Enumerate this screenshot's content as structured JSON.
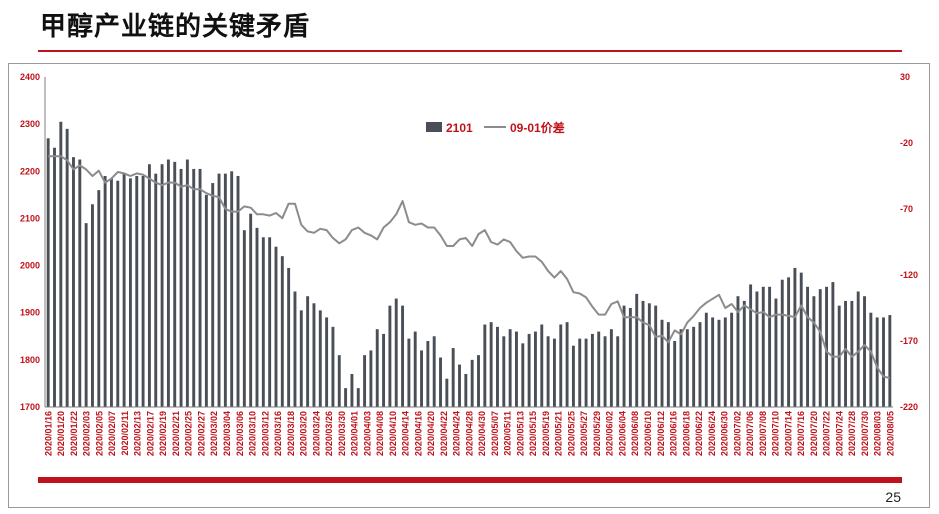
{
  "slide": {
    "title": "甲醇产业链的关键矛盾",
    "page_number": "25",
    "accent_color": "#c0121a"
  },
  "chart_data": {
    "type": "bar+line",
    "legend_position": "top-center",
    "grid": false,
    "y_left": {
      "min": 1700,
      "max": 2400,
      "ticks": [
        "1700",
        "1800",
        "1900",
        "2000",
        "2100",
        "2200",
        "2300",
        "2400"
      ],
      "color": "#c0121a"
    },
    "y_right": {
      "min": -220,
      "max": 30,
      "ticks": [
        "-220",
        "-170",
        "-120",
        "-70",
        "-20",
        "30"
      ],
      "color": "#c0121a"
    },
    "x_ticks": [
      "2020/01/16",
      "2020/01/20",
      "2020/01/22",
      "2020/02/03",
      "2020/02/05",
      "2020/02/07",
      "2020/02/11",
      "2020/02/13",
      "2020/02/17",
      "2020/02/19",
      "2020/02/21",
      "2020/02/25",
      "2020/02/27",
      "2020/03/02",
      "2020/03/04",
      "2020/03/06",
      "2020/03/10",
      "2020/03/12",
      "2020/03/16",
      "2020/03/18",
      "2020/03/20",
      "2020/03/24",
      "2020/03/26",
      "2020/03/30",
      "2020/04/01",
      "2020/04/03",
      "2020/04/08",
      "2020/04/10",
      "2020/04/14",
      "2020/04/16",
      "2020/04/20",
      "2020/04/22",
      "2020/04/24",
      "2020/04/28",
      "2020/04/30",
      "2020/05/07",
      "2020/05/11",
      "2020/05/13",
      "2020/05/15",
      "2020/05/19",
      "2020/05/21",
      "2020/05/25",
      "2020/05/27",
      "2020/05/29",
      "2020/06/02",
      "2020/06/04",
      "2020/06/08",
      "2020/06/10",
      "2020/06/12",
      "2020/06/16",
      "2020/06/18",
      "2020/06/22",
      "2020/06/24",
      "2020/06/30",
      "2020/07/02",
      "2020/07/06",
      "2020/07/08",
      "2020/07/10",
      "2020/07/14",
      "2020/07/16",
      "2020/07/20",
      "2020/07/22",
      "2020/07/24",
      "2020/07/28",
      "2020/07/30",
      "2020/08/03",
      "2020/08/05"
    ],
    "series": [
      {
        "name": "2101",
        "type": "bar",
        "axis": "left",
        "color": "#4a4f57",
        "values": [
          2270,
          2250,
          2305,
          2290,
          2230,
          2225,
          2090,
          2130,
          2160,
          2190,
          2185,
          2180,
          2195,
          2185,
          2190,
          2190,
          2215,
          2195,
          2215,
          2225,
          2220,
          2205,
          2225,
          2205,
          2205,
          2150,
          2175,
          2195,
          2195,
          2200,
          2190,
          2075,
          2110,
          2080,
          2060,
          2060,
          2040,
          2020,
          1995,
          1945,
          1905,
          1935,
          1920,
          1905,
          1890,
          1870,
          1810,
          1740,
          1770,
          1740,
          1810,
          1820,
          1865,
          1855,
          1915,
          1930,
          1915,
          1845,
          1860,
          1820,
          1840,
          1850,
          1805,
          1760,
          1825,
          1790,
          1770,
          1800,
          1810,
          1875,
          1880,
          1870,
          1850,
          1865,
          1860,
          1835,
          1855,
          1860,
          1875,
          1850,
          1845,
          1875,
          1880,
          1830,
          1845,
          1845,
          1855,
          1860,
          1850,
          1865,
          1850,
          1915,
          1910,
          1940,
          1925,
          1920,
          1915,
          1885,
          1880,
          1840,
          1865,
          1865,
          1870,
          1880,
          1900,
          1890,
          1885,
          1890,
          1900,
          1935,
          1925,
          1960,
          1945,
          1955,
          1955,
          1930,
          1970,
          1975,
          1995,
          1985,
          1955,
          1935,
          1950,
          1955,
          1965,
          1915,
          1925,
          1925,
          1945,
          1935,
          1900,
          1890,
          1890,
          1895
        ]
      },
      {
        "name": "09-01价差",
        "type": "line",
        "axis": "right",
        "color": "#8c8c8c",
        "values": [
          -30,
          -30,
          -30,
          -33,
          -40,
          -37,
          -40,
          -45,
          -41,
          -50,
          -47,
          -42,
          -43,
          -45,
          -43,
          -44,
          -47,
          -50,
          -52,
          -50,
          -50,
          -53,
          -52,
          -55,
          -55,
          -58,
          -60,
          -61,
          -70,
          -72,
          -72,
          -68,
          -69,
          -74,
          -74,
          -75,
          -73,
          -77,
          -66,
          -66,
          -82,
          -87,
          -88,
          -85,
          -86,
          -92,
          -96,
          -93,
          -86,
          -84,
          -88,
          -90,
          -93,
          -84,
          -80,
          -74,
          -64,
          -80,
          -82,
          -81,
          -84,
          -84,
          -90,
          -98,
          -98,
          -93,
          -92,
          -98,
          -89,
          -86,
          -95,
          -97,
          -93,
          -95,
          -102,
          -107,
          -106,
          -106,
          -110,
          -117,
          -122,
          -117,
          -123,
          -133,
          -134,
          -137,
          -144,
          -150,
          -150,
          -142,
          -140,
          -152,
          -152,
          -152,
          -156,
          -158,
          -167,
          -166,
          -171,
          -162,
          -165,
          -156,
          -151,
          -145,
          -141,
          -138,
          -135,
          -145,
          -142,
          -148,
          -143,
          -146,
          -149,
          -148,
          -152,
          -150,
          -150,
          -151,
          -152,
          -143,
          -152,
          -156,
          -163,
          -178,
          -182,
          -182,
          -176,
          -182,
          -178,
          -173,
          -178,
          -190,
          -197,
          -198
        ]
      }
    ]
  }
}
